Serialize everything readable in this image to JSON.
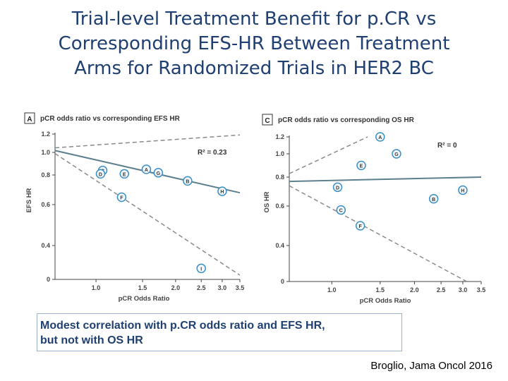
{
  "title_lines": [
    "Trial-level Treatment Benefit for p.CR vs",
    "Corresponding EFS-HR Between Treatment",
    "Arms for Randomized Trials in HER2 BC"
  ],
  "caption": {
    "line1": "Modest correlation with p.CR odds ratio and EFS HR,",
    "line2": "but not with OS HR"
  },
  "citation": "Broglio, Jama Oncol 2016",
  "colors": {
    "title": "#1f3f72",
    "axis": "#444444",
    "regression": "#5e7f8e",
    "point_edge": "#3a8fc7",
    "point_fill": "#f4f8fc"
  },
  "chart_data": [
    {
      "type": "scatter",
      "panel_label": "A",
      "title": "pCR odds ratio vs corresponding EFS HR",
      "xlabel": "pCR Odds Ratio",
      "ylabel": "EFS HR",
      "x_scale": "log",
      "xlim": [
        0.7,
        3.5
      ],
      "ylim": [
        0,
        1.2
      ],
      "xticks": [
        1.0,
        1.5,
        2.0,
        2.5,
        3.0,
        3.5
      ],
      "xtick_labels": [
        "1.0",
        "1.5",
        "2.0",
        "2.5",
        "3.0",
        "3.5"
      ],
      "yticks": [
        0,
        0.4,
        0.6,
        0.8,
        1.0,
        1.2
      ],
      "ytick_labels": [
        "0",
        "0.4",
        "0.6",
        "0.8",
        "1.0",
        "1.2"
      ],
      "annotation": "R² = 0.23",
      "points": [
        {
          "label": "C",
          "x": 1.06,
          "y": 0.84
        },
        {
          "label": "D",
          "x": 1.04,
          "y": 0.81
        },
        {
          "label": "E",
          "x": 1.28,
          "y": 0.81
        },
        {
          "label": "A",
          "x": 1.55,
          "y": 0.85
        },
        {
          "label": "G",
          "x": 1.72,
          "y": 0.82
        },
        {
          "label": "B",
          "x": 2.22,
          "y": 0.76
        },
        {
          "label": "H",
          "x": 3.0,
          "y": 0.69
        },
        {
          "label": "F",
          "x": 1.25,
          "y": 0.65
        },
        {
          "label": "I",
          "x": 2.5,
          "y": 0.13
        }
      ],
      "regression": {
        "x": [
          0.7,
          3.5
        ],
        "y": [
          1.02,
          0.68
        ]
      },
      "ci_upper": {
        "x": [
          0.7,
          3.5
        ],
        "y": [
          1.05,
          1.19
        ]
      },
      "ci_lower": {
        "x": [
          0.7,
          3.5
        ],
        "y": [
          0.99,
          0.05
        ]
      }
    },
    {
      "type": "scatter",
      "panel_label": "C",
      "title": "pCR odds ratio vs corresponding OS HR",
      "xlabel": "pCR Odds Ratio",
      "ylabel": "OS HR",
      "x_scale": "log",
      "xlim": [
        0.7,
        3.5
      ],
      "ylim": [
        0,
        1.2
      ],
      "xticks": [
        1.0,
        1.5,
        2.0,
        2.5,
        3.0,
        3.5
      ],
      "xtick_labels": [
        "1.0",
        "1.5",
        "2.0",
        "2.5",
        "3.0",
        "3.5"
      ],
      "yticks": [
        0,
        0.4,
        0.6,
        0.8,
        1.0,
        1.2
      ],
      "ytick_labels": [
        "0",
        "0.4",
        "0.6",
        "0.8",
        "1.0",
        "1.2"
      ],
      "annotation": "R² = 0",
      "points": [
        {
          "label": "A",
          "x": 1.5,
          "y": 1.2
        },
        {
          "label": "G",
          "x": 1.72,
          "y": 1.0
        },
        {
          "label": "E",
          "x": 1.28,
          "y": 0.9
        },
        {
          "label": "D",
          "x": 1.05,
          "y": 0.73
        },
        {
          "label": "H",
          "x": 3.0,
          "y": 0.71
        },
        {
          "label": "B",
          "x": 2.35,
          "y": 0.65
        },
        {
          "label": "C",
          "x": 1.08,
          "y": 0.58
        },
        {
          "label": "F",
          "x": 1.27,
          "y": 0.5
        }
      ],
      "regression": {
        "x": [
          0.7,
          3.5
        ],
        "y": [
          0.77,
          0.8
        ]
      },
      "ci_upper": {
        "x": [
          0.7,
          1.35
        ],
        "y": [
          0.83,
          1.2
        ]
      },
      "ci_lower": {
        "x": [
          0.7,
          3.1
        ],
        "y": [
          0.74,
          0.0
        ]
      }
    }
  ]
}
